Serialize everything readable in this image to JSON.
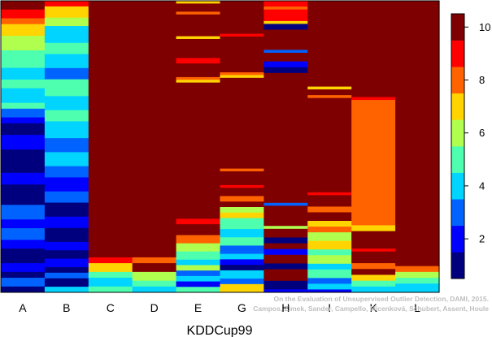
{
  "chart_data": {
    "type": "heatmap",
    "title": "",
    "xlabel": "KDDCup99",
    "ylabel": "",
    "categories": [
      "A",
      "B",
      "C",
      "D",
      "E",
      "G",
      "H",
      "I",
      "K",
      "L"
    ],
    "colorbar": {
      "range": [
        0.5,
        10.5
      ],
      "ticks": [
        2,
        4,
        6,
        8,
        10
      ],
      "levels": [
        "#00007F",
        "#0000FF",
        "#0063FF",
        "#00D4FF",
        "#4EFFB0",
        "#B0FF4E",
        "#FFD400",
        "#FF6300",
        "#FF0000",
        "#7F0000"
      ]
    },
    "columns_top_to_bottom": [
      {
        "name": "A",
        "segments": [
          [
            0.03,
            10
          ],
          [
            0.03,
            9
          ],
          [
            0.02,
            8
          ],
          [
            0.04,
            7
          ],
          [
            0.05,
            6
          ],
          [
            0.06,
            5
          ],
          [
            0.04,
            4
          ],
          [
            0.03,
            5
          ],
          [
            0.05,
            4
          ],
          [
            0.02,
            5
          ],
          [
            0.03,
            3
          ],
          [
            0.02,
            2
          ],
          [
            0.04,
            1
          ],
          [
            0.05,
            2
          ],
          [
            0.08,
            1
          ],
          [
            0.04,
            2
          ],
          [
            0.07,
            1
          ],
          [
            0.05,
            3
          ],
          [
            0.03,
            2
          ],
          [
            0.04,
            3
          ],
          [
            0.03,
            2
          ],
          [
            0.05,
            1
          ],
          [
            0.03,
            2
          ],
          [
            0.02,
            1
          ],
          [
            0.03,
            3
          ],
          [
            0.02,
            1
          ]
        ]
      },
      {
        "name": "B",
        "segments": [
          [
            0.02,
            9
          ],
          [
            0.04,
            7
          ],
          [
            0.03,
            6
          ],
          [
            0.06,
            4
          ],
          [
            0.04,
            5
          ],
          [
            0.05,
            4
          ],
          [
            0.04,
            3
          ],
          [
            0.06,
            5
          ],
          [
            0.05,
            4
          ],
          [
            0.04,
            5
          ],
          [
            0.06,
            4
          ],
          [
            0.05,
            3
          ],
          [
            0.05,
            4
          ],
          [
            0.04,
            3
          ],
          [
            0.05,
            2
          ],
          [
            0.04,
            3
          ],
          [
            0.05,
            1
          ],
          [
            0.04,
            2
          ],
          [
            0.05,
            1
          ],
          [
            0.03,
            2
          ],
          [
            0.03,
            1
          ],
          [
            0.03,
            2
          ],
          [
            0.02,
            1
          ],
          [
            0.02,
            3
          ],
          [
            0.03,
            1
          ],
          [
            0.02,
            4
          ]
        ]
      },
      {
        "name": "C",
        "segments": [
          [
            0.88,
            10
          ],
          [
            0.02,
            9
          ],
          [
            0.03,
            7
          ],
          [
            0.02,
            5
          ],
          [
            0.03,
            4
          ],
          [
            0.02,
            5
          ]
        ]
      },
      {
        "name": "D",
        "segments": [
          [
            0.88,
            10
          ],
          [
            0.02,
            8
          ],
          [
            0.03,
            10
          ],
          [
            0.03,
            6
          ],
          [
            0.02,
            5
          ],
          [
            0.02,
            4
          ]
        ]
      },
      {
        "name": "E",
        "segments": [
          [
            0.01,
            7
          ],
          [
            0.03,
            10
          ],
          [
            0.01,
            8
          ],
          [
            0.08,
            10
          ],
          [
            0.01,
            7
          ],
          [
            0.07,
            10
          ],
          [
            0.02,
            9
          ],
          [
            0.05,
            10
          ],
          [
            0.01,
            8
          ],
          [
            0.01,
            7
          ],
          [
            0.5,
            10
          ],
          [
            0.02,
            9
          ],
          [
            0.04,
            10
          ],
          [
            0.03,
            8
          ],
          [
            0.03,
            6
          ],
          [
            0.03,
            5
          ],
          [
            0.02,
            4
          ],
          [
            0.02,
            6
          ],
          [
            0.02,
            3
          ],
          [
            0.02,
            4
          ],
          [
            0.02,
            2
          ],
          [
            0.02,
            5
          ]
        ]
      },
      {
        "name": "G",
        "segments": [
          [
            0.12,
            10
          ],
          [
            0.01,
            9
          ],
          [
            0.13,
            10
          ],
          [
            0.01,
            8
          ],
          [
            0.01,
            7
          ],
          [
            0.33,
            10
          ],
          [
            0.01,
            8
          ],
          [
            0.05,
            10
          ],
          [
            0.01,
            9
          ],
          [
            0.03,
            10
          ],
          [
            0.02,
            8
          ],
          [
            0.02,
            10
          ],
          [
            0.02,
            6
          ],
          [
            0.02,
            7
          ],
          [
            0.04,
            5
          ],
          [
            0.03,
            4
          ],
          [
            0.03,
            5
          ],
          [
            0.03,
            3
          ],
          [
            0.02,
            4
          ],
          [
            0.02,
            2
          ],
          [
            0.02,
            1
          ],
          [
            0.03,
            4
          ],
          [
            0.02,
            3
          ],
          [
            0.03,
            7
          ]
        ]
      },
      {
        "name": "H",
        "segments": [
          [
            0.02,
            9
          ],
          [
            0.01,
            8
          ],
          [
            0.04,
            9
          ],
          [
            0.01,
            7
          ],
          [
            0.02,
            1
          ],
          [
            0.07,
            10
          ],
          [
            0.01,
            3
          ],
          [
            0.03,
            10
          ],
          [
            0.02,
            2
          ],
          [
            0.02,
            1
          ],
          [
            0.45,
            10
          ],
          [
            0.01,
            3
          ],
          [
            0.07,
            10
          ],
          [
            0.01,
            6
          ],
          [
            0.03,
            10
          ],
          [
            0.02,
            1
          ],
          [
            0.02,
            10
          ],
          [
            0.02,
            2
          ],
          [
            0.03,
            10
          ],
          [
            0.02,
            1
          ],
          [
            0.04,
            10
          ],
          [
            0.03,
            1
          ],
          [
            0.01,
            2
          ]
        ]
      },
      {
        "name": "I",
        "segments": [
          [
            0.3,
            10
          ],
          [
            0.01,
            7
          ],
          [
            0.02,
            10
          ],
          [
            0.01,
            8
          ],
          [
            0.33,
            10
          ],
          [
            0.01,
            9
          ],
          [
            0.04,
            10
          ],
          [
            0.02,
            8
          ],
          [
            0.03,
            10
          ],
          [
            0.02,
            7
          ],
          [
            0.02,
            8
          ],
          [
            0.03,
            6
          ],
          [
            0.03,
            7
          ],
          [
            0.02,
            5
          ],
          [
            0.03,
            6
          ],
          [
            0.02,
            4
          ],
          [
            0.03,
            5
          ],
          [
            0.02,
            3
          ],
          [
            0.02,
            4
          ],
          [
            0.01,
            2
          ]
        ]
      },
      {
        "name": "K",
        "segments": [
          [
            0.33,
            10
          ],
          [
            0.01,
            9
          ],
          [
            0.43,
            8
          ],
          [
            0.02,
            7
          ],
          [
            0.06,
            10
          ],
          [
            0.01,
            9
          ],
          [
            0.04,
            10
          ],
          [
            0.02,
            8
          ],
          [
            0.02,
            10
          ],
          [
            0.02,
            7
          ],
          [
            0.02,
            5
          ],
          [
            0.02,
            4
          ]
        ]
      },
      {
        "name": "L",
        "segments": [
          [
            0.91,
            10
          ],
          [
            0.02,
            8
          ],
          [
            0.02,
            6
          ],
          [
            0.02,
            5
          ],
          [
            0.03,
            4
          ]
        ]
      }
    ]
  },
  "watermark": {
    "line1": "On the Evaluation of Unsupervised Outlier Detection, DAMI, 2015.",
    "line2": "Campos, Zimek, Sander, Campello, Micenková, Schubert, Assent, Houle"
  }
}
